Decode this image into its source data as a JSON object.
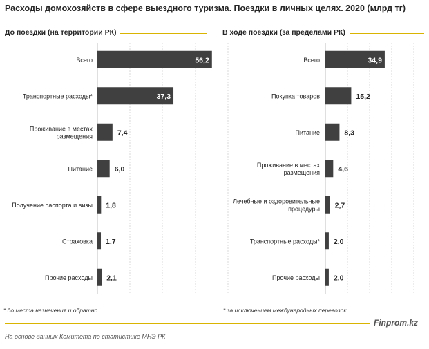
{
  "title": "Расходы домохозяйств в сфере выездного туризма. Поездки в личных целях. 2020 (млрд тг)",
  "chart_data": [
    {
      "type": "bar",
      "orientation": "horizontal",
      "title": "До поездки (на территории РК)",
      "categories": [
        "Всего",
        "Транспортные расходы*",
        "Проживание в местах размещения",
        "Питание",
        "Получение паспорта и визы",
        "Страховка",
        "Прочие расходы"
      ],
      "label_lines": [
        [
          "Всего"
        ],
        [
          "Транспортные расходы*"
        ],
        [
          "Проживание в местах",
          "размещения"
        ],
        [
          "Питание"
        ],
        [
          "Получение паспорта и визы"
        ],
        [
          "Страховка"
        ],
        [
          "Прочие расходы"
        ]
      ],
      "values": [
        56.2,
        37.3,
        7.4,
        6.0,
        1.8,
        1.7,
        2.1
      ],
      "value_labels": [
        "56,2",
        "37,3",
        "7,4",
        "6,0",
        "1,8",
        "1,7",
        "2,1"
      ],
      "xlim": [
        0,
        80
      ],
      "grid": true,
      "bar_color": "#404040",
      "inside_label_color": "#ffffff",
      "outside_label_color": "#262626"
    },
    {
      "type": "bar",
      "orientation": "horizontal",
      "title": "В ходе поездки (за пределами РК)",
      "categories": [
        "Всего",
        "Покупка товаров",
        "Питание",
        "Проживание в местах размещения",
        "Лечебные и оздоровительные процедуры",
        "Транспортные расходы*",
        "Прочие расходы"
      ],
      "label_lines": [
        [
          "Всего"
        ],
        [
          "Покупка товаров"
        ],
        [
          "Питание"
        ],
        [
          "Проживание в местах",
          "размещения"
        ],
        [
          "Лечебные и оздоровительные",
          "процедуры"
        ],
        [
          "Транспортные расходы*"
        ],
        [
          "Прочие расходы"
        ]
      ],
      "values": [
        34.9,
        15.2,
        8.3,
        4.6,
        2.7,
        2.0,
        2.0
      ],
      "value_labels": [
        "34,9",
        "15,2",
        "8,3",
        "4,6",
        "2,7",
        "2,0",
        "2,0"
      ],
      "xlim": [
        0,
        52
      ],
      "grid": true,
      "bar_color": "#404040",
      "inside_label_color": "#ffffff",
      "outside_label_color": "#262626"
    }
  ],
  "footnotes": [
    "* до места назначения и обратно",
    "* за исключением международных перевозок"
  ],
  "brand": "Finprom.kz",
  "source": "На основе данных  Комитета по статистике МНЭ РК"
}
